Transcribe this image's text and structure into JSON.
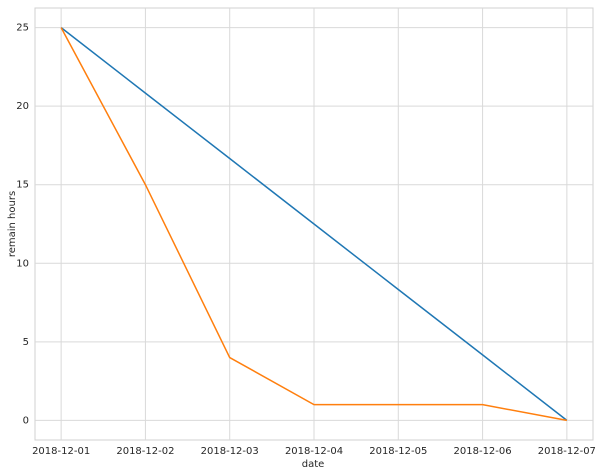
{
  "chart_data": {
    "type": "line",
    "xlabel": "date",
    "ylabel": "remain hours",
    "categories": [
      "2018-12-01",
      "2018-12-02",
      "2018-12-03",
      "2018-12-04",
      "2018-12-05",
      "2018-12-06",
      "2018-12-07"
    ],
    "series": [
      {
        "color": "#1f77b4",
        "values": [
          25,
          20.83,
          16.67,
          12.5,
          8.33,
          4.17,
          0
        ]
      },
      {
        "color": "#ff7f0e",
        "values": [
          25,
          15,
          4,
          1,
          1,
          1,
          0
        ]
      }
    ],
    "ylim": [
      -1.25,
      26.25
    ],
    "yticks": [
      0,
      5,
      10,
      15,
      20,
      25
    ],
    "grid": true
  }
}
